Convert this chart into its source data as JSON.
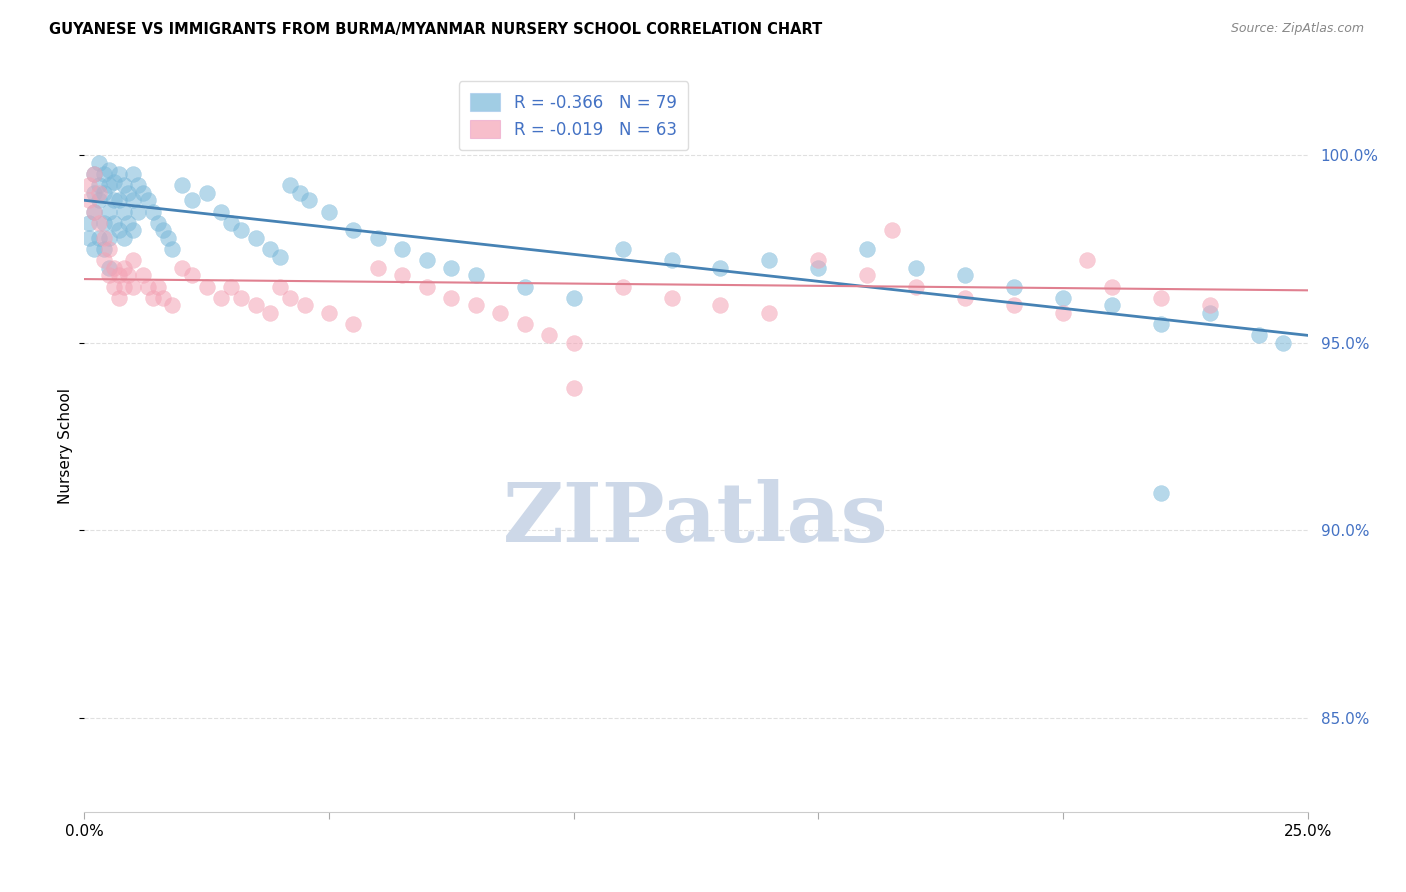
{
  "title": "GUYANESE VS IMMIGRANTS FROM BURMA/MYANMAR NURSERY SCHOOL CORRELATION CHART",
  "source": "Source: ZipAtlas.com",
  "ylabel": "Nursery School",
  "yticks": [
    85.0,
    90.0,
    95.0,
    100.0
  ],
  "ytick_labels": [
    "85.0%",
    "90.0%",
    "95.0%",
    "100.0%"
  ],
  "xlim": [
    0.0,
    0.25
  ],
  "ylim": [
    82.5,
    102.0
  ],
  "blue_R": -0.366,
  "blue_N": 79,
  "pink_R": -0.019,
  "pink_N": 63,
  "blue_scatter": [
    [
      0.001,
      98.2
    ],
    [
      0.001,
      97.8
    ],
    [
      0.002,
      99.0
    ],
    [
      0.002,
      98.5
    ],
    [
      0.002,
      97.5
    ],
    [
      0.002,
      99.5
    ],
    [
      0.003,
      99.8
    ],
    [
      0.003,
      99.2
    ],
    [
      0.003,
      98.8
    ],
    [
      0.003,
      97.8
    ],
    [
      0.004,
      99.5
    ],
    [
      0.004,
      99.0
    ],
    [
      0.004,
      98.2
    ],
    [
      0.004,
      97.5
    ],
    [
      0.005,
      99.6
    ],
    [
      0.005,
      99.2
    ],
    [
      0.005,
      98.5
    ],
    [
      0.005,
      97.8
    ],
    [
      0.005,
      97.0
    ],
    [
      0.006,
      99.3
    ],
    [
      0.006,
      98.8
    ],
    [
      0.006,
      98.2
    ],
    [
      0.007,
      99.5
    ],
    [
      0.007,
      98.8
    ],
    [
      0.007,
      98.0
    ],
    [
      0.008,
      99.2
    ],
    [
      0.008,
      98.5
    ],
    [
      0.008,
      97.8
    ],
    [
      0.009,
      99.0
    ],
    [
      0.009,
      98.2
    ],
    [
      0.01,
      99.5
    ],
    [
      0.01,
      98.8
    ],
    [
      0.01,
      98.0
    ],
    [
      0.011,
      99.2
    ],
    [
      0.011,
      98.5
    ],
    [
      0.012,
      99.0
    ],
    [
      0.013,
      98.8
    ],
    [
      0.014,
      98.5
    ],
    [
      0.015,
      98.2
    ],
    [
      0.016,
      98.0
    ],
    [
      0.017,
      97.8
    ],
    [
      0.018,
      97.5
    ],
    [
      0.02,
      99.2
    ],
    [
      0.022,
      98.8
    ],
    [
      0.025,
      99.0
    ],
    [
      0.028,
      98.5
    ],
    [
      0.03,
      98.2
    ],
    [
      0.032,
      98.0
    ],
    [
      0.035,
      97.8
    ],
    [
      0.038,
      97.5
    ],
    [
      0.04,
      97.3
    ],
    [
      0.042,
      99.2
    ],
    [
      0.044,
      99.0
    ],
    [
      0.046,
      98.8
    ],
    [
      0.05,
      98.5
    ],
    [
      0.055,
      98.0
    ],
    [
      0.06,
      97.8
    ],
    [
      0.065,
      97.5
    ],
    [
      0.07,
      97.2
    ],
    [
      0.075,
      97.0
    ],
    [
      0.08,
      96.8
    ],
    [
      0.09,
      96.5
    ],
    [
      0.1,
      96.2
    ],
    [
      0.11,
      97.5
    ],
    [
      0.12,
      97.2
    ],
    [
      0.13,
      97.0
    ],
    [
      0.14,
      97.2
    ],
    [
      0.15,
      97.0
    ],
    [
      0.16,
      97.5
    ],
    [
      0.17,
      97.0
    ],
    [
      0.18,
      96.8
    ],
    [
      0.19,
      96.5
    ],
    [
      0.2,
      96.2
    ],
    [
      0.21,
      96.0
    ],
    [
      0.22,
      95.5
    ],
    [
      0.22,
      91.0
    ],
    [
      0.23,
      95.8
    ],
    [
      0.24,
      95.2
    ],
    [
      0.245,
      95.0
    ]
  ],
  "pink_scatter": [
    [
      0.001,
      99.2
    ],
    [
      0.001,
      98.8
    ],
    [
      0.002,
      99.5
    ],
    [
      0.002,
      98.5
    ],
    [
      0.003,
      99.0
    ],
    [
      0.003,
      98.2
    ],
    [
      0.004,
      97.8
    ],
    [
      0.004,
      97.2
    ],
    [
      0.005,
      97.5
    ],
    [
      0.005,
      96.8
    ],
    [
      0.006,
      97.0
    ],
    [
      0.006,
      96.5
    ],
    [
      0.007,
      96.8
    ],
    [
      0.007,
      96.2
    ],
    [
      0.008,
      97.0
    ],
    [
      0.008,
      96.5
    ],
    [
      0.009,
      96.8
    ],
    [
      0.01,
      97.2
    ],
    [
      0.01,
      96.5
    ],
    [
      0.012,
      96.8
    ],
    [
      0.013,
      96.5
    ],
    [
      0.014,
      96.2
    ],
    [
      0.015,
      96.5
    ],
    [
      0.016,
      96.2
    ],
    [
      0.018,
      96.0
    ],
    [
      0.02,
      97.0
    ],
    [
      0.022,
      96.8
    ],
    [
      0.025,
      96.5
    ],
    [
      0.028,
      96.2
    ],
    [
      0.03,
      96.5
    ],
    [
      0.032,
      96.2
    ],
    [
      0.035,
      96.0
    ],
    [
      0.038,
      95.8
    ],
    [
      0.04,
      96.5
    ],
    [
      0.042,
      96.2
    ],
    [
      0.045,
      96.0
    ],
    [
      0.05,
      95.8
    ],
    [
      0.055,
      95.5
    ],
    [
      0.06,
      97.0
    ],
    [
      0.065,
      96.8
    ],
    [
      0.07,
      96.5
    ],
    [
      0.075,
      96.2
    ],
    [
      0.08,
      96.0
    ],
    [
      0.085,
      95.8
    ],
    [
      0.09,
      95.5
    ],
    [
      0.095,
      95.2
    ],
    [
      0.1,
      95.0
    ],
    [
      0.1,
      93.8
    ],
    [
      0.11,
      96.5
    ],
    [
      0.12,
      96.2
    ],
    [
      0.13,
      96.0
    ],
    [
      0.14,
      95.8
    ],
    [
      0.15,
      97.2
    ],
    [
      0.16,
      96.8
    ],
    [
      0.165,
      98.0
    ],
    [
      0.17,
      96.5
    ],
    [
      0.18,
      96.2
    ],
    [
      0.19,
      96.0
    ],
    [
      0.2,
      95.8
    ],
    [
      0.205,
      97.2
    ],
    [
      0.21,
      96.5
    ],
    [
      0.22,
      96.2
    ],
    [
      0.23,
      96.0
    ]
  ],
  "blue_line_x": [
    0.0,
    0.25
  ],
  "blue_line_y": [
    98.8,
    95.2
  ],
  "pink_line_x": [
    0.0,
    0.25
  ],
  "pink_line_y": [
    96.7,
    96.4
  ],
  "background_color": "#ffffff",
  "grid_color": "#e0e0e0",
  "blue_color": "#7ab8d9",
  "pink_color": "#f4a3b5",
  "blue_line_color": "#4682b4",
  "pink_line_color": "#e08090",
  "watermark_text": "ZIPatlas",
  "watermark_color": "#cdd8e8"
}
